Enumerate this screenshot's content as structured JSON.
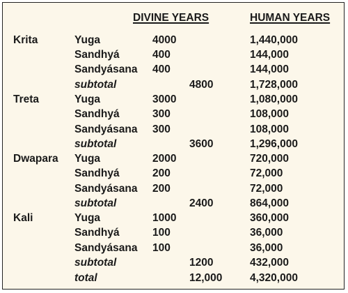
{
  "headers": {
    "divine": "DIVINE YEARS",
    "human": "HUMAN YEARS"
  },
  "groups": [
    {
      "era": "Krita",
      "rows": [
        {
          "label": "Yuga",
          "divine": "4000",
          "human": "1,440,000"
        },
        {
          "label": "Sandhyá",
          "divine": "400",
          "human": "144,000"
        },
        {
          "label": "Sandyásana",
          "divine": "400",
          "human": "144,000"
        },
        {
          "label": "subtotal",
          "subtotal": "4800",
          "human": "1,728,000"
        }
      ]
    },
    {
      "era": "Treta",
      "rows": [
        {
          "label": "Yuga",
          "divine": "3000",
          "human": "1,080,000"
        },
        {
          "label": "Sandhyá",
          "divine": "300",
          "human": "108,000"
        },
        {
          "label": "Sandyásana",
          "divine": "300",
          "human": "108,000"
        },
        {
          "label": "subtotal",
          "subtotal": "3600",
          "human": "1,296,000"
        }
      ]
    },
    {
      "era": "Dwapara",
      "rows": [
        {
          "label": "Yuga",
          "divine": "2000",
          "human": "720,000"
        },
        {
          "label": "Sandhyá",
          "divine": "200",
          "human": "72,000"
        },
        {
          "label": "Sandyásana",
          "divine": "200",
          "human": "72,000"
        },
        {
          "label": "subtotal",
          "subtotal": "2400",
          "human": "864,000"
        }
      ]
    },
    {
      "era": "Kali",
      "rows": [
        {
          "label": "Yuga",
          "divine": "1000",
          "human": "360,000"
        },
        {
          "label": "Sandhyá",
          "divine": "100",
          "human": "36,000"
        },
        {
          "label": "Sandyásana",
          "divine": "100",
          "human": "36,000"
        },
        {
          "label": "subtotal",
          "subtotal": "1200",
          "human": "432,000"
        }
      ]
    }
  ],
  "total": {
    "label": "total",
    "subtotal": "12,000",
    "human": "4,320,000"
  }
}
